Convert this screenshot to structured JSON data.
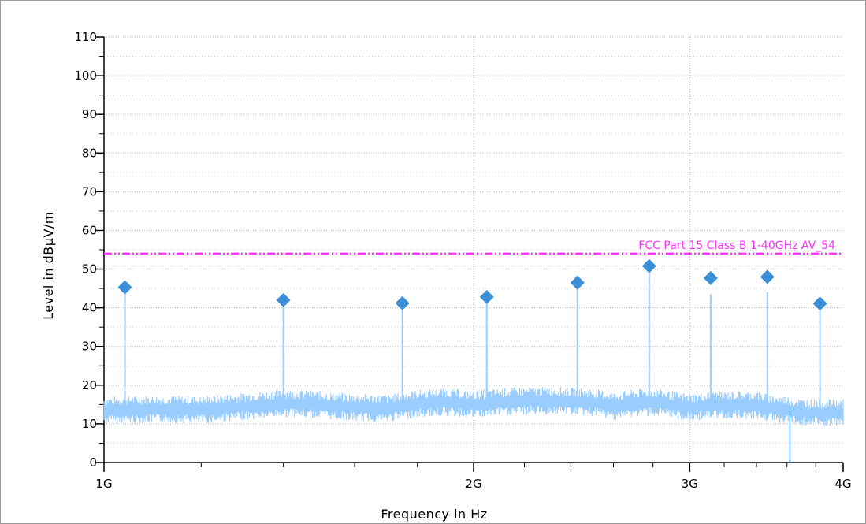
{
  "chart_data": {
    "type": "line",
    "xscale": "log",
    "xlabel": "Frequency in Hz",
    "ylabel": "Level in dBµV/m",
    "xlim": [
      1000000000.0,
      4000000000.0
    ],
    "ylim": [
      0,
      110
    ],
    "grid": true,
    "x_ticks": [
      {
        "value": 1000000000.0,
        "label": "1G"
      },
      {
        "value": 2000000000.0,
        "label": "2G"
      },
      {
        "value": 3000000000.0,
        "label": "3G"
      },
      {
        "value": 4000000000.0,
        "label": "4G"
      }
    ],
    "y_ticks": [
      0,
      10,
      20,
      30,
      40,
      50,
      60,
      70,
      80,
      90,
      100,
      110
    ],
    "noise_floor": {
      "color": "#99ccff",
      "points": [
        [
          1000000000.0,
          13.5
        ],
        [
          1100000000.0,
          13.8
        ],
        [
          1200000000.0,
          13.6
        ],
        [
          1300000000.0,
          14.5
        ],
        [
          1400000000.0,
          15.3
        ],
        [
          1500000000.0,
          14.9
        ],
        [
          1600000000.0,
          14.2
        ],
        [
          1700000000.0,
          14.0
        ],
        [
          1800000000.0,
          15.2
        ],
        [
          1900000000.0,
          15.6
        ],
        [
          2000000000.0,
          15.0
        ],
        [
          2100000000.0,
          15.6
        ],
        [
          2200000000.0,
          15.9
        ],
        [
          2300000000.0,
          16.0
        ],
        [
          2400000000.0,
          15.8
        ],
        [
          2500000000.0,
          15.5
        ],
        [
          2600000000.0,
          14.6
        ],
        [
          2700000000.0,
          15.3
        ],
        [
          2800000000.0,
          15.6
        ],
        [
          2900000000.0,
          14.9
        ],
        [
          3000000000.0,
          14.2
        ],
        [
          3100000000.0,
          14.7
        ],
        [
          3200000000.0,
          14.8
        ],
        [
          3300000000.0,
          14.9
        ],
        [
          3400000000.0,
          14.8
        ],
        [
          3500000000.0,
          14.0
        ],
        [
          3600000000.0,
          13.6
        ],
        [
          3700000000.0,
          13.0
        ],
        [
          3800000000.0,
          12.9
        ],
        [
          3900000000.0,
          12.8
        ],
        [
          4000000000.0,
          12.7
        ]
      ]
    },
    "spikes": [
      {
        "x": 1040000000.0,
        "y": 45.0
      },
      {
        "x": 1400000000.0,
        "y": 42.0
      },
      {
        "x": 1750000000.0,
        "y": 41.0
      },
      {
        "x": 2050000000.0,
        "y": 42.5
      },
      {
        "x": 2430000000.0,
        "y": 46.5
      },
      {
        "x": 2780000000.0,
        "y": 51.0
      },
      {
        "x": 3120000000.0,
        "y": 43.5
      },
      {
        "x": 3470000000.0,
        "y": 44.0
      },
      {
        "x": 3830000000.0,
        "y": 41.0
      }
    ],
    "dropout": {
      "x": 3620000000.0,
      "y": 0
    },
    "markers": {
      "color": "#3a8fd6",
      "points": [
        {
          "x": 1040000000.0,
          "y": 45.3
        },
        {
          "x": 1400000000.0,
          "y": 42.0
        },
        {
          "x": 1750000000.0,
          "y": 41.2
        },
        {
          "x": 2050000000.0,
          "y": 42.8
        },
        {
          "x": 2430000000.0,
          "y": 46.5
        },
        {
          "x": 2780000000.0,
          "y": 50.8
        },
        {
          "x": 3120000000.0,
          "y": 47.7
        },
        {
          "x": 3470000000.0,
          "y": 48.0
        },
        {
          "x": 3830000000.0,
          "y": 41.1
        }
      ]
    },
    "limit_line": {
      "label": "FCC Part 15 Class B 1-40GHz AV_54",
      "value": 54,
      "color": "#ff33ff"
    }
  }
}
